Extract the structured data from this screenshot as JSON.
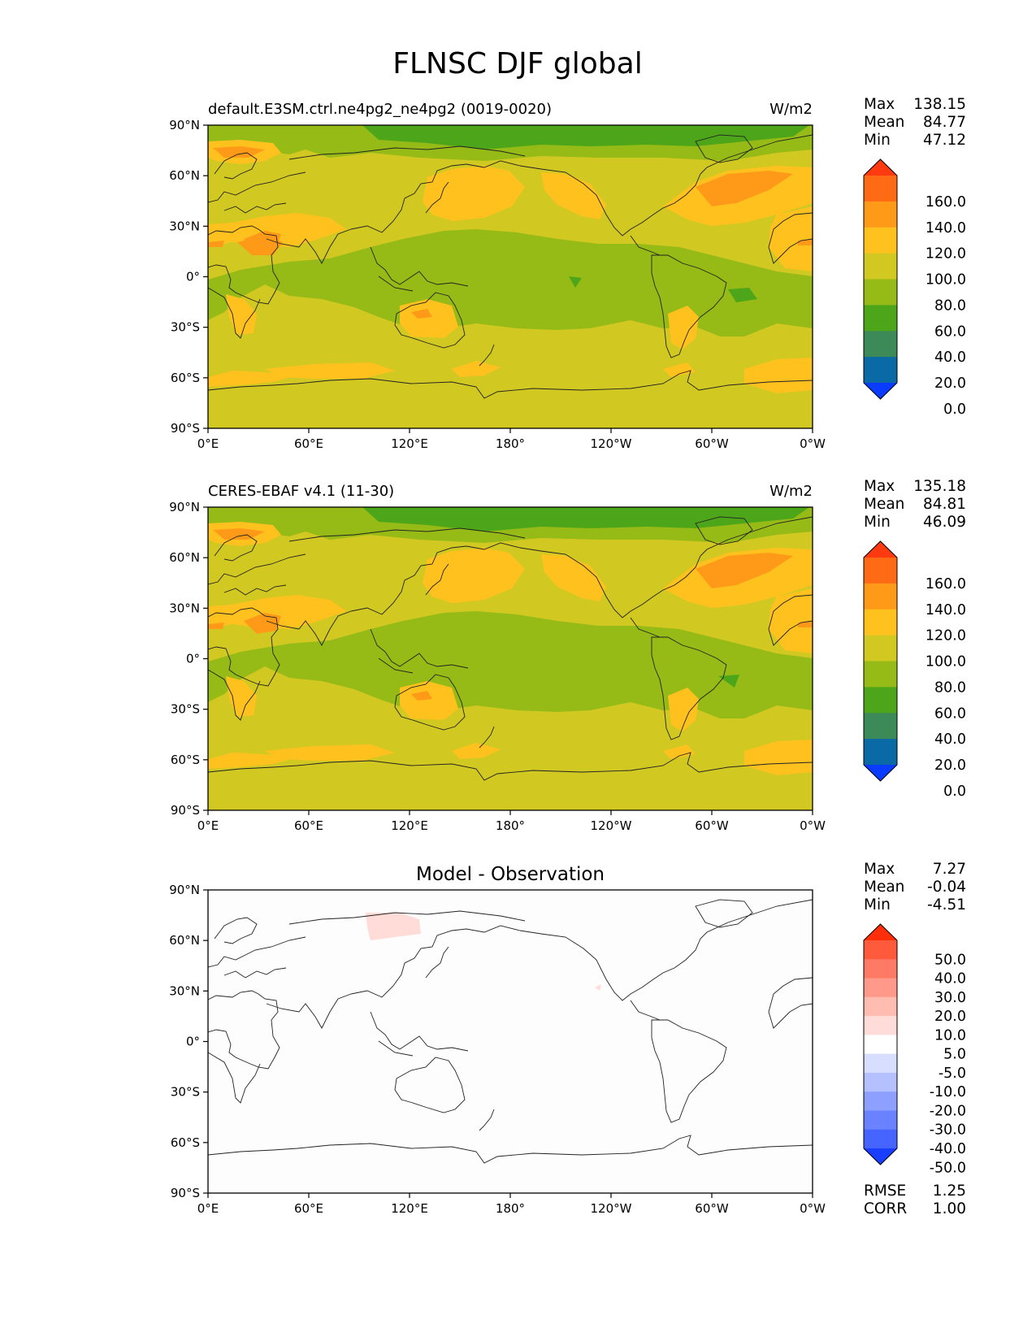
{
  "figure": {
    "title": "FLNSC DJF global"
  },
  "axes": {
    "yticks": [
      "90°N",
      "60°N",
      "30°N",
      "0°",
      "30°S",
      "60°S",
      "90°S"
    ],
    "xticks": [
      "0°E",
      "60°E",
      "120°E",
      "180°",
      "120°W",
      "60°W",
      "0°W"
    ]
  },
  "panels": [
    {
      "left_title": "default.E3SM.ctrl.ne4pg2_ne4pg2 (0019-0020)",
      "center_title": "",
      "units": "W/m2",
      "stats": [
        {
          "label": "Max",
          "value": "138.15"
        },
        {
          "label": "Mean",
          "value": "84.77"
        },
        {
          "label": "Min",
          "value": "47.12"
        }
      ],
      "colorbar": {
        "ticks": [
          "160.0",
          "140.0",
          "120.0",
          "100.0",
          "80.0",
          "60.0",
          "40.0",
          "20.0",
          "0.0"
        ],
        "colors": [
          "#ff3a10",
          "#ff6a14",
          "#ff9a18",
          "#ffc11e",
          "#d2c822",
          "#96ba16",
          "#4da61a",
          "#3c8a58",
          "#0a6aa6",
          "#0a3cff"
        ]
      }
    },
    {
      "left_title": "CERES-EBAF v4.1 (11-30)",
      "center_title": "",
      "units": "W/m2",
      "stats": [
        {
          "label": "Max",
          "value": "135.18"
        },
        {
          "label": "Mean",
          "value": "84.81"
        },
        {
          "label": "Min",
          "value": "46.09"
        }
      ],
      "colorbar": {
        "ticks": [
          "160.0",
          "140.0",
          "120.0",
          "100.0",
          "80.0",
          "60.0",
          "40.0",
          "20.0",
          "0.0"
        ],
        "colors": [
          "#ff3a10",
          "#ff6a14",
          "#ff9a18",
          "#ffc11e",
          "#d2c822",
          "#96ba16",
          "#4da61a",
          "#3c8a58",
          "#0a6aa6",
          "#0a3cff"
        ]
      }
    },
    {
      "left_title": "",
      "center_title": "Model - Observation",
      "units": "",
      "stats": [
        {
          "label": "Max",
          "value": "7.27"
        },
        {
          "label": "Mean",
          "value": "-0.04"
        },
        {
          "label": "Min",
          "value": "-4.51"
        }
      ],
      "colorbar": {
        "ticks": [
          "50.0",
          "40.0",
          "30.0",
          "20.0",
          "10.0",
          "5.0",
          "-5.0",
          "-10.0",
          "-20.0",
          "-30.0",
          "-40.0",
          "-50.0"
        ],
        "colors": [
          "#ff2e0a",
          "#ff5a3c",
          "#ff7a64",
          "#ff9a8a",
          "#ffbcb0",
          "#ffdcd8",
          "#ffffff",
          "#d8deff",
          "#b4c0ff",
          "#8ea0ff",
          "#6a82ff",
          "#4664ff",
          "#1a3eff"
        ]
      },
      "footer_stats": [
        {
          "label": "RMSE",
          "value": "1.25"
        },
        {
          "label": "CORR",
          "value": "1.00"
        }
      ]
    }
  ],
  "chart_data": [
    {
      "type": "heatmap",
      "title": "default.E3SM.ctrl.ne4pg2_ne4pg2 (0019-0020)",
      "units": "W/m2",
      "x_range_deg_lon": [
        0,
        360
      ],
      "y_range_deg_lat": [
        -90,
        90
      ],
      "stats": {
        "max": 138.15,
        "mean": 84.77,
        "min": 47.12
      },
      "levels": [
        0,
        20,
        40,
        60,
        80,
        100,
        120,
        140,
        160
      ]
    },
    {
      "type": "heatmap",
      "title": "CERES-EBAF v4.1 (11-30)",
      "units": "W/m2",
      "x_range_deg_lon": [
        0,
        360
      ],
      "y_range_deg_lat": [
        -90,
        90
      ],
      "stats": {
        "max": 135.18,
        "mean": 84.81,
        "min": 46.09
      },
      "levels": [
        0,
        20,
        40,
        60,
        80,
        100,
        120,
        140,
        160
      ]
    },
    {
      "type": "heatmap",
      "title": "Model - Observation",
      "x_range_deg_lon": [
        0,
        360
      ],
      "y_range_deg_lat": [
        -90,
        90
      ],
      "stats": {
        "max": 7.27,
        "mean": -0.04,
        "min": -4.51,
        "rmse": 1.25,
        "corr": 1.0
      },
      "levels": [
        -50,
        -40,
        -30,
        -20,
        -10,
        -5,
        5,
        10,
        20,
        30,
        40,
        50
      ]
    }
  ]
}
